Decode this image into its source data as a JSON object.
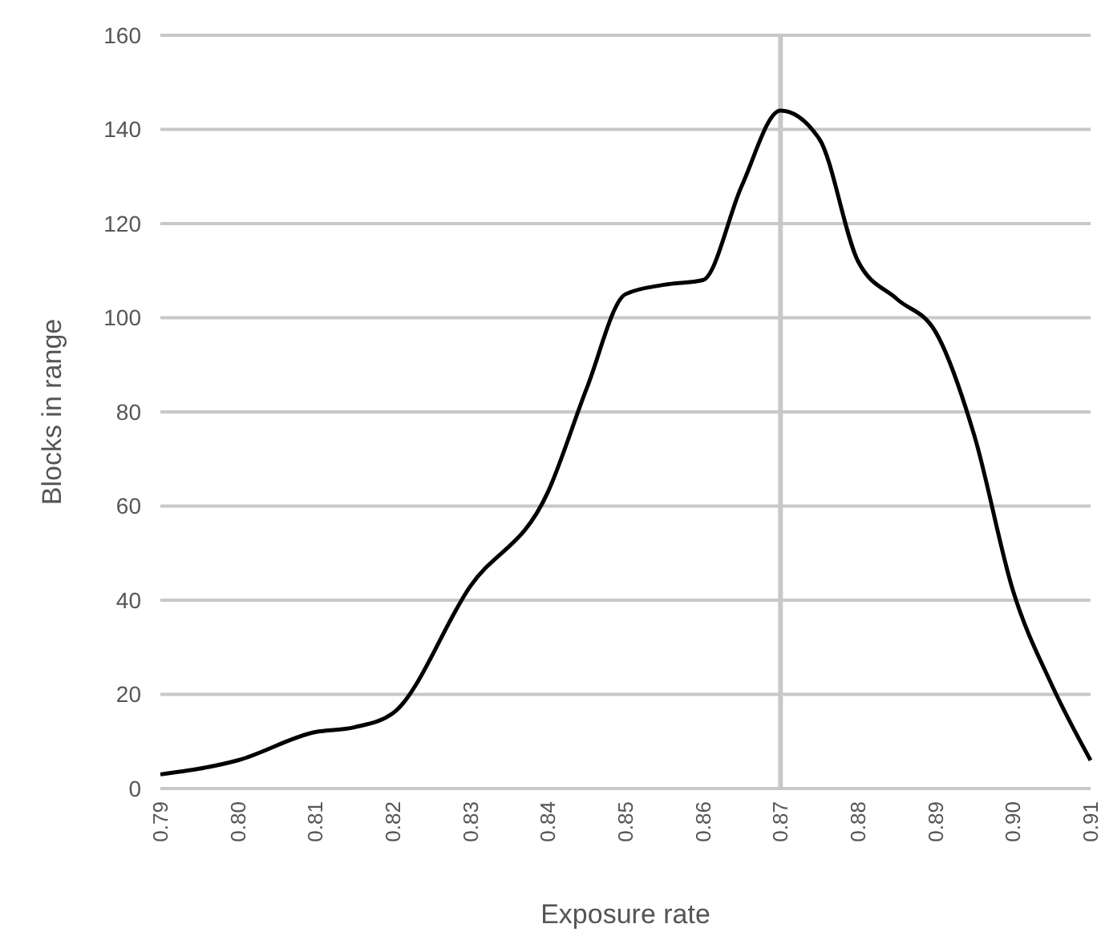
{
  "chart_data": {
    "type": "line",
    "xlabel": "Exposure rate",
    "ylabel": "Blocks in range",
    "x": [
      0.79,
      0.8,
      0.81,
      0.815,
      0.82,
      0.83,
      0.84,
      0.845,
      0.85,
      0.855,
      0.86,
      0.865,
      0.87,
      0.875,
      0.88,
      0.885,
      0.89,
      0.895,
      0.9,
      0.905,
      0.91
    ],
    "series": [
      {
        "color": "#000000",
        "values": [
          3,
          6,
          12,
          13,
          16,
          43,
          63,
          85,
          105,
          107,
          108,
          128,
          144,
          138,
          112,
          104,
          97,
          75,
          42,
          22,
          6
        ]
      }
    ],
    "xlim": [
      0.79,
      0.91
    ],
    "xticks": [
      0.79,
      {
        "value": 0.8,
        "label": "0.80"
      },
      0.81,
      0.82,
      0.83,
      0.84,
      0.85,
      0.86,
      0.87,
      0.88,
      0.89,
      {
        "value": 0.9,
        "label": "0.90"
      },
      0.91
    ],
    "ylim": [
      0,
      160
    ],
    "yticks": [
      0,
      20,
      40,
      60,
      80,
      100,
      120,
      140,
      160
    ],
    "grid": "y",
    "ref_lines": [
      {
        "axis": "x",
        "value": 0.87,
        "color": "#c8c8c8"
      }
    ],
    "marker": "none",
    "line_style": "solid"
  }
}
